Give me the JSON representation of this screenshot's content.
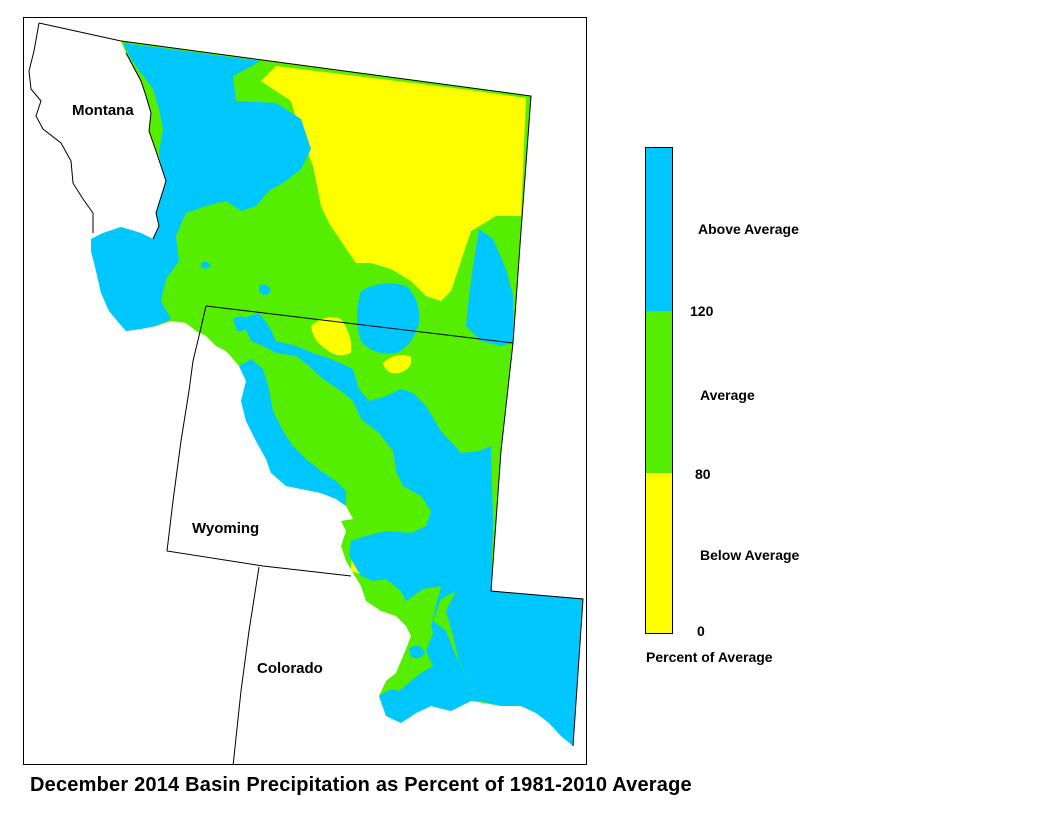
{
  "title": "December 2014 Basin Precipitation as Percent of 1981-2010 Average",
  "states": {
    "montana": "Montana",
    "wyoming": "Wyoming",
    "colorado": "Colorado"
  },
  "legend": {
    "caption": "Percent of Average",
    "categories": [
      {
        "label": "Above Average",
        "color": "#00c8ff",
        "range": [
          120,
          null
        ]
      },
      {
        "label": "Average",
        "color": "#55ee00",
        "range": [
          80,
          120
        ]
      },
      {
        "label": "Below Average",
        "color": "#ffff00",
        "range": [
          0,
          80
        ]
      }
    ],
    "breaks": [
      "120",
      "80",
      "0"
    ]
  },
  "colors": {
    "above": "#00c8ff",
    "average": "#55ee00",
    "below": "#ffff00",
    "boundary": "#000000",
    "background": "#ffffff"
  }
}
